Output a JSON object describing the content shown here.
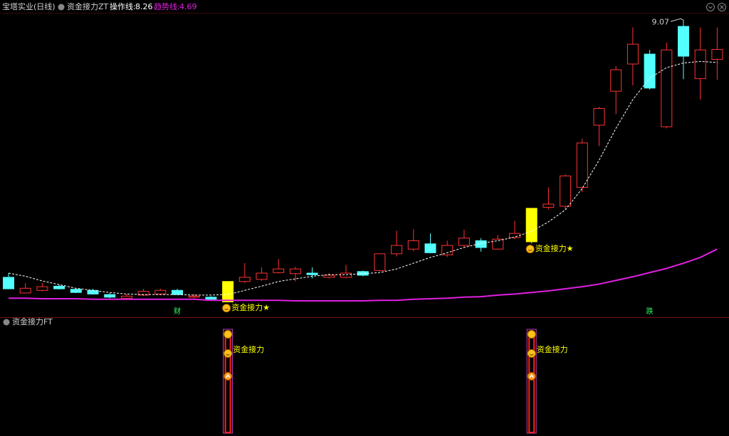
{
  "chart_data": [
    {
      "type": "candlestick",
      "title": "宝塔实业(日线)",
      "indicator": "资金接力ZT",
      "categories": [
        null,
        null,
        null,
        null,
        null,
        null,
        null,
        null,
        null,
        null,
        "财",
        null,
        null,
        null,
        null,
        null,
        null,
        null,
        null,
        null,
        null,
        null,
        null,
        null,
        null,
        null,
        null,
        null,
        null,
        null,
        null,
        null,
        null,
        null,
        null,
        null,
        null,
        null,
        "跌",
        null,
        null,
        null,
        null
      ],
      "open": [
        4.15,
        3.85,
        3.9,
        3.98,
        3.92,
        3.9,
        3.82,
        3.75,
        3.81,
        3.83,
        3.9,
        3.77,
        3.77,
        3.68,
        4.07,
        4.11,
        4.24,
        4.22,
        4.23,
        4.15,
        4.15,
        4.26,
        4.28,
        4.6,
        4.69,
        4.79,
        4.58,
        4.76,
        4.85,
        4.69,
        4.91,
        4.83,
        5.49,
        5.51,
        5.87,
        7.06,
        7.71,
        8.23,
        8.42,
        7.03,
        8.95,
        7.95,
        8.32
      ],
      "high": [
        4.23,
        4.04,
        4.04,
        4.01,
        3.94,
        3.93,
        3.85,
        3.83,
        3.93,
        3.93,
        3.93,
        3.83,
        3.79,
        4.07,
        4.42,
        4.34,
        4.5,
        4.35,
        4.34,
        4.23,
        4.39,
        4.28,
        4.6,
        5.04,
        5.07,
        4.99,
        4.85,
        5.06,
        4.9,
        4.96,
        5.23,
        5.47,
        5.87,
        6.12,
        6.8,
        7.41,
        8.19,
        8.93,
        8.5,
        8.64,
        9.07,
        8.93,
        8.93
      ],
      "low": [
        3.93,
        3.85,
        3.88,
        3.92,
        3.85,
        3.82,
        3.75,
        3.73,
        3.79,
        3.82,
        3.81,
        3.75,
        3.71,
        3.67,
        4.04,
        4.08,
        4.22,
        4.07,
        4.13,
        4.13,
        4.13,
        4.17,
        4.26,
        4.55,
        4.65,
        4.61,
        4.54,
        4.72,
        4.64,
        4.68,
        4.88,
        4.8,
        5.45,
        5.45,
        5.78,
        6.66,
        7.27,
        7.82,
        7.74,
        7.0,
        7.94,
        7.55,
        7.93
      ],
      "close": [
        3.93,
        3.94,
        3.97,
        3.93,
        3.86,
        3.83,
        3.77,
        3.79,
        3.88,
        3.9,
        3.82,
        3.79,
        3.73,
        4.07,
        4.15,
        4.23,
        4.31,
        4.31,
        4.2,
        4.19,
        4.23,
        4.19,
        4.6,
        4.76,
        4.85,
        4.62,
        4.76,
        4.9,
        4.72,
        4.88,
        4.99,
        5.47,
        5.55,
        6.09,
        6.72,
        7.38,
        8.12,
        8.61,
        7.77,
        8.5,
        8.38,
        8.5,
        8.51
      ],
      "signals": [
        null,
        null,
        null,
        null,
        null,
        null,
        null,
        null,
        null,
        null,
        null,
        null,
        null,
        "资金接力★",
        null,
        null,
        null,
        null,
        null,
        null,
        null,
        null,
        null,
        null,
        null,
        null,
        null,
        null,
        null,
        null,
        null,
        "资金接力★",
        null,
        null,
        null,
        null,
        null,
        null,
        null,
        null,
        null,
        null,
        null
      ],
      "up_color": "#ff3232",
      "down_color": "#54ffff",
      "signal_color": "#ffff00",
      "lines": [
        {
          "name": "操作线:",
          "color": "#ffffff",
          "dashed": true,
          "values": [
            4.23,
            4.17,
            4.08,
            4.01,
            3.94,
            3.9,
            3.86,
            3.83,
            3.82,
            3.82,
            3.82,
            3.81,
            3.81,
            3.82,
            3.9,
            3.98,
            4.07,
            4.12,
            4.17,
            4.2,
            4.2,
            4.22,
            4.24,
            4.31,
            4.42,
            4.53,
            4.62,
            4.72,
            4.8,
            4.85,
            4.92,
            5.03,
            5.21,
            5.44,
            5.85,
            6.39,
            7.0,
            7.55,
            7.96,
            8.16,
            8.25,
            8.28,
            8.26
          ]
        },
        {
          "name": "趋势线:",
          "color": "#e020e0",
          "dashed": false,
          "values": [
            3.75,
            3.75,
            3.74,
            3.74,
            3.74,
            3.73,
            3.73,
            3.73,
            3.73,
            3.73,
            3.73,
            3.73,
            3.71,
            3.71,
            3.71,
            3.71,
            3.71,
            3.7,
            3.7,
            3.7,
            3.7,
            3.7,
            3.71,
            3.71,
            3.73,
            3.74,
            3.75,
            3.77,
            3.78,
            3.81,
            3.83,
            3.86,
            3.89,
            3.93,
            3.97,
            4.02,
            4.09,
            4.16,
            4.24,
            4.32,
            4.42,
            4.53,
            4.69
          ]
        }
      ],
      "ylim": [
        3.4,
        9.21
      ]
    },
    {
      "type": "signal",
      "title": "资金接力FT",
      "signals": [
        null,
        null,
        null,
        null,
        null,
        null,
        null,
        null,
        null,
        null,
        null,
        null,
        null,
        "资金接力",
        null,
        null,
        null,
        null,
        null,
        null,
        null,
        null,
        null,
        null,
        null,
        null,
        null,
        null,
        null,
        null,
        null,
        "资金接力",
        null,
        null,
        null,
        null,
        null,
        null,
        null,
        null,
        null,
        null,
        null
      ]
    }
  ]
}
